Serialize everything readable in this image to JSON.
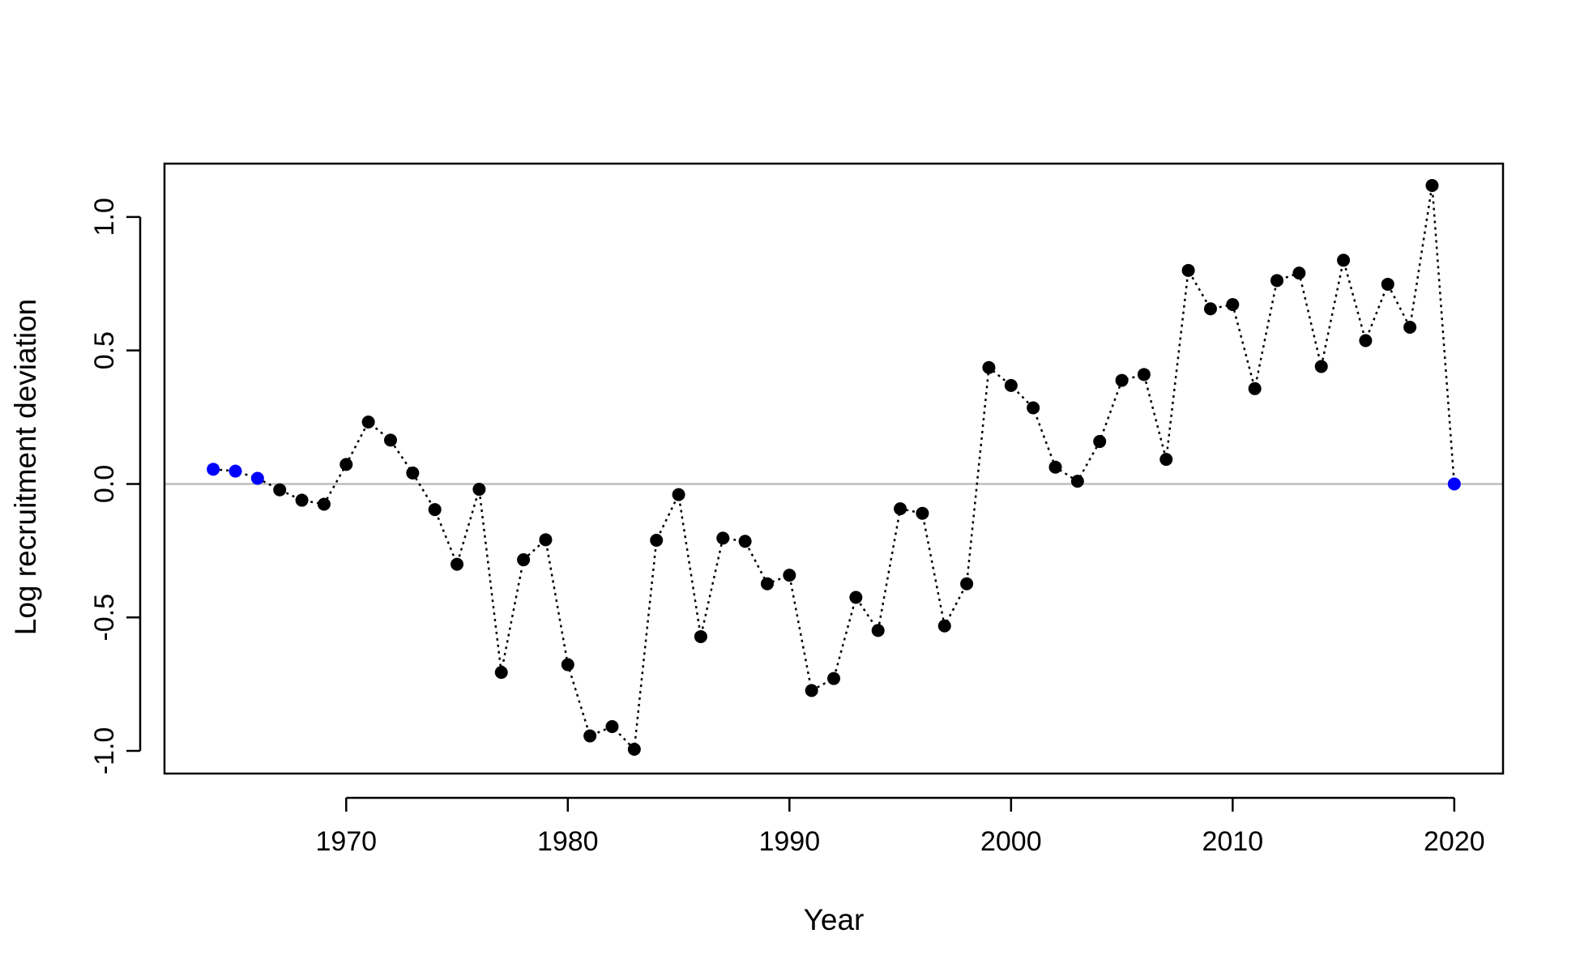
{
  "chart_data": {
    "type": "scatter",
    "title": "",
    "xlabel": "Year",
    "ylabel": "Log recruitment deviation",
    "xlim": [
      1961.8,
      2022.2
    ],
    "ylim": [
      -1.085,
      1.2
    ],
    "x_ticks": [
      1970,
      1980,
      1990,
      2000,
      2010,
      2020
    ],
    "y_ticks": [
      -1.0,
      -0.5,
      0.0,
      0.5,
      1.0
    ],
    "x_tick_labels": [
      "1970",
      "1980",
      "1990",
      "2000",
      "2010",
      "2020"
    ],
    "y_tick_labels": [
      "-1.0",
      "-0.5",
      "0.0",
      "0.5",
      "1.0"
    ],
    "reference_line": {
      "y": 0,
      "color": "#bebebe"
    },
    "line_style": "dotted",
    "colors": {
      "main": "#000000",
      "highlight": "#0000ff"
    },
    "highlighted_years": [
      1964,
      1965,
      1966,
      2020
    ],
    "series": [
      {
        "x": [
          1964,
          1965,
          1966,
          1967,
          1968,
          1969,
          1970,
          1971,
          1972,
          1973,
          1974,
          1975,
          1976,
          1977,
          1978,
          1979,
          1980,
          1981,
          1982,
          1983,
          1984,
          1985,
          1986,
          1987,
          1988,
          1989,
          1990,
          1991,
          1992,
          1993,
          1994,
          1995,
          1996,
          1997,
          1998,
          1999,
          2000,
          2001,
          2002,
          2003,
          2004,
          2005,
          2006,
          2007,
          2008,
          2009,
          2010,
          2011,
          2012,
          2013,
          2014,
          2015,
          2016,
          2017,
          2018,
          2019,
          2020
        ],
        "y": [
          0.055,
          0.048,
          0.021,
          -0.022,
          -0.061,
          -0.076,
          0.073,
          0.232,
          0.164,
          0.041,
          -0.096,
          -0.301,
          -0.02,
          -0.706,
          -0.284,
          -0.209,
          -0.677,
          -0.944,
          -0.909,
          -0.994,
          -0.211,
          -0.04,
          -0.572,
          -0.203,
          -0.215,
          -0.374,
          -0.342,
          -0.774,
          -0.729,
          -0.425,
          -0.549,
          -0.093,
          -0.11,
          -0.532,
          -0.374,
          0.436,
          0.369,
          0.285,
          0.063,
          0.01,
          0.159,
          0.388,
          0.41,
          0.092,
          0.8,
          0.656,
          0.672,
          0.357,
          0.762,
          0.79,
          0.44,
          0.838,
          0.537,
          0.748,
          0.587,
          1.118,
          0.0
        ]
      }
    ]
  }
}
